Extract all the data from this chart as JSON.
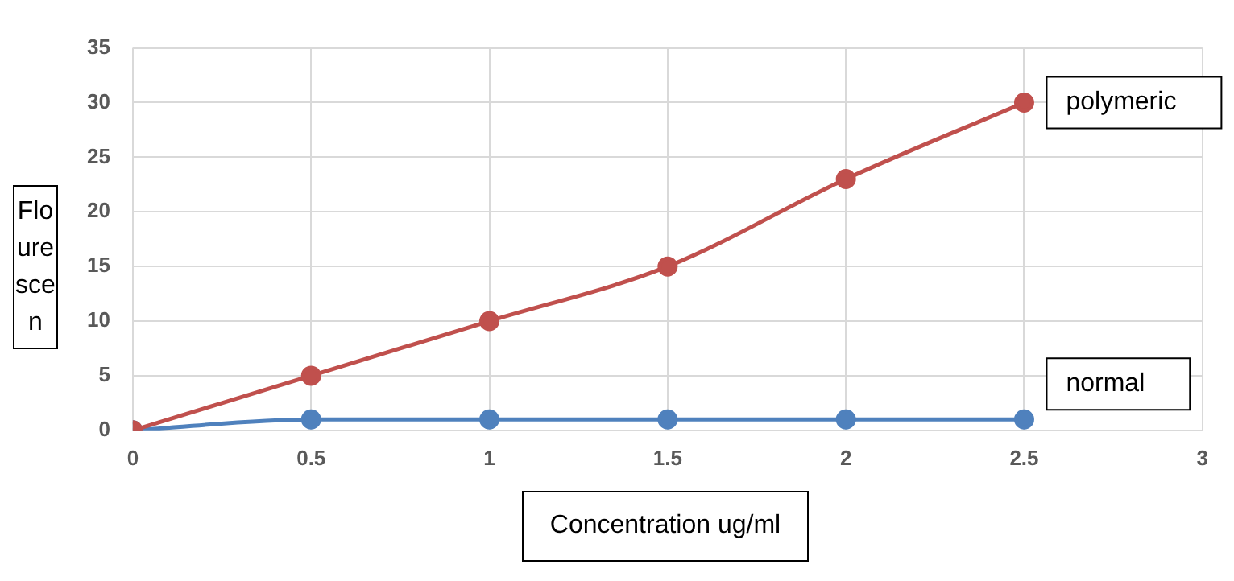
{
  "chart_data": {
    "type": "line",
    "xlabel": "Concentration ug/ml",
    "ylabel": "Flourescen",
    "x": [
      0,
      0.5,
      1,
      1.5,
      2,
      2.5
    ],
    "series": [
      {
        "name": "polymeric",
        "color": "#c0504d",
        "values": [
          0,
          5,
          10,
          15,
          23,
          30
        ]
      },
      {
        "name": "normal",
        "color": "#4f81bd",
        "values": [
          0,
          1,
          1,
          1,
          1,
          1
        ]
      }
    ],
    "xlim": [
      0,
      3
    ],
    "xticks": [
      0,
      0.5,
      1,
      1.5,
      2,
      2.5,
      3
    ],
    "ylim": [
      0,
      35
    ],
    "yticks": [
      0,
      5,
      10,
      15,
      20,
      25,
      30,
      35
    ],
    "grid": true,
    "marker": "circle",
    "line_style": "solid",
    "legend": false
  }
}
